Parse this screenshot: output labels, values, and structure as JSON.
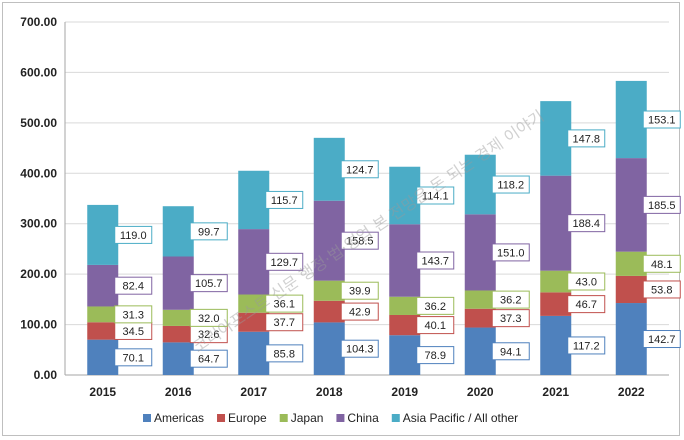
{
  "chart_data": {
    "type": "bar",
    "stacked": true,
    "categories": [
      "2015",
      "2016",
      "2017",
      "2018",
      "2019",
      "2020",
      "2021",
      "2022"
    ],
    "series": [
      {
        "name": "Americas",
        "color": "#4f81bd",
        "values": [
          70.1,
          64.7,
          85.8,
          104.3,
          78.9,
          94.1,
          117.2,
          142.7
        ]
      },
      {
        "name": "Europe",
        "color": "#c0504d",
        "values": [
          34.5,
          32.6,
          37.7,
          42.9,
          40.1,
          37.3,
          46.7,
          53.8
        ]
      },
      {
        "name": "Japan",
        "color": "#9bbb59",
        "values": [
          31.3,
          32.0,
          36.1,
          39.9,
          36.2,
          36.2,
          43.0,
          48.1
        ]
      },
      {
        "name": "China",
        "color": "#8064a2",
        "values": [
          82.4,
          105.7,
          129.7,
          158.5,
          143.7,
          151.0,
          188.4,
          185.5
        ]
      },
      {
        "name": "Asia Pacific / All other",
        "color": "#4bacc6",
        "values": [
          119.0,
          99.7,
          115.7,
          124.7,
          114.1,
          118.2,
          147.8,
          153.1
        ]
      }
    ],
    "ylim": [
      0,
      700
    ],
    "yticks": [
      "0.00",
      "100.00",
      "200.00",
      "300.00",
      "400.00",
      "500.00",
      "600.00",
      "700.00"
    ],
    "grid": true,
    "legend_position": "bottom",
    "watermark": "코리아포스트 신문 행정·법·영업 본 전망은 돈 되는 경제 이야기"
  }
}
